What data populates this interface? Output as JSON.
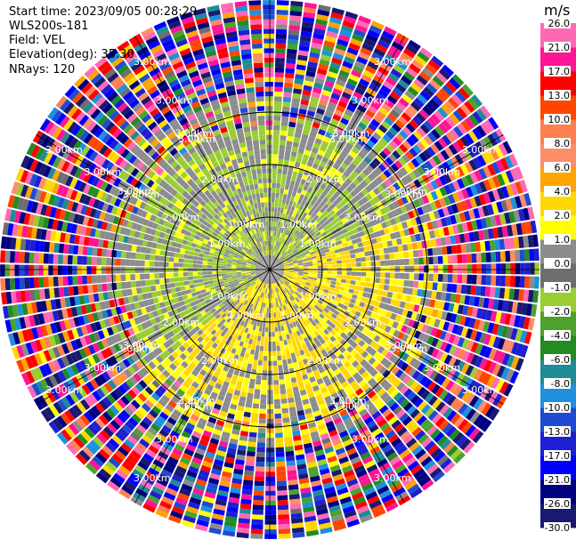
{
  "header": {
    "start_time": "Start time: 2023/09/05 00:28:29",
    "site": "WLS200s-181",
    "field": "Field: VEL",
    "elevation": "Elevation(deg): 35.30",
    "nrays": "NRays: 120"
  },
  "colorbar": {
    "unit": "m/s",
    "boundaries": [
      -30.0,
      -26.0,
      -21.0,
      -17.0,
      -13.0,
      -10.0,
      -8.0,
      -6.0,
      -4.0,
      -2.0,
      -1.0,
      0.0,
      1.0,
      2.0,
      4.0,
      6.0,
      8.0,
      10.0,
      13.0,
      17.0,
      21.0,
      26.0
    ],
    "tick_labels": [
      "-30.0",
      "-26.0",
      "-21.0",
      "-17.0",
      "-13.0",
      "-10.0",
      "-8.0",
      "-6.0",
      "-4.0",
      "-2.0",
      "-1.0",
      "0.0",
      "1.0",
      "2.0",
      "4.0",
      "6.0",
      "8.0",
      "10.0",
      "13.0",
      "17.0",
      "21.0",
      "26.0"
    ],
    "colors": [
      "#191970",
      "#000080",
      "#0000ff",
      "#1e1ed2",
      "#1e4bd2",
      "#1e90dc",
      "#1e8c96",
      "#228b22",
      "#4ca22d",
      "#9acd32",
      "#6e6e6e",
      "#8c8c8c",
      "#ffff00",
      "#ffd700",
      "#ffa500",
      "#ff8c69",
      "#ff7f50",
      "#ff4500",
      "#ff0000",
      "#ff1493",
      "#ff69b4"
    ]
  },
  "chart_data": {
    "type": "heatmap",
    "projection": "polar (PPI)",
    "field": "VEL",
    "units": "m/s",
    "nrays": 120,
    "range_rings_km": [
      1.0,
      2.0,
      3.0
    ],
    "ring_labels": [
      "1.00km",
      "2.00km",
      "3.00km"
    ],
    "valid_data_range_km": 1.65,
    "max_range_km": 3.3,
    "velocity_pattern": "south/east quadrant approaching positive (yellow 1-4 m/s); north/west quadrant near-zero to slightly negative (grey/green -2 to 1 m/s); beyond ~2.2 km noise spanning full range -30 to 26 m/s",
    "grid": true
  }
}
